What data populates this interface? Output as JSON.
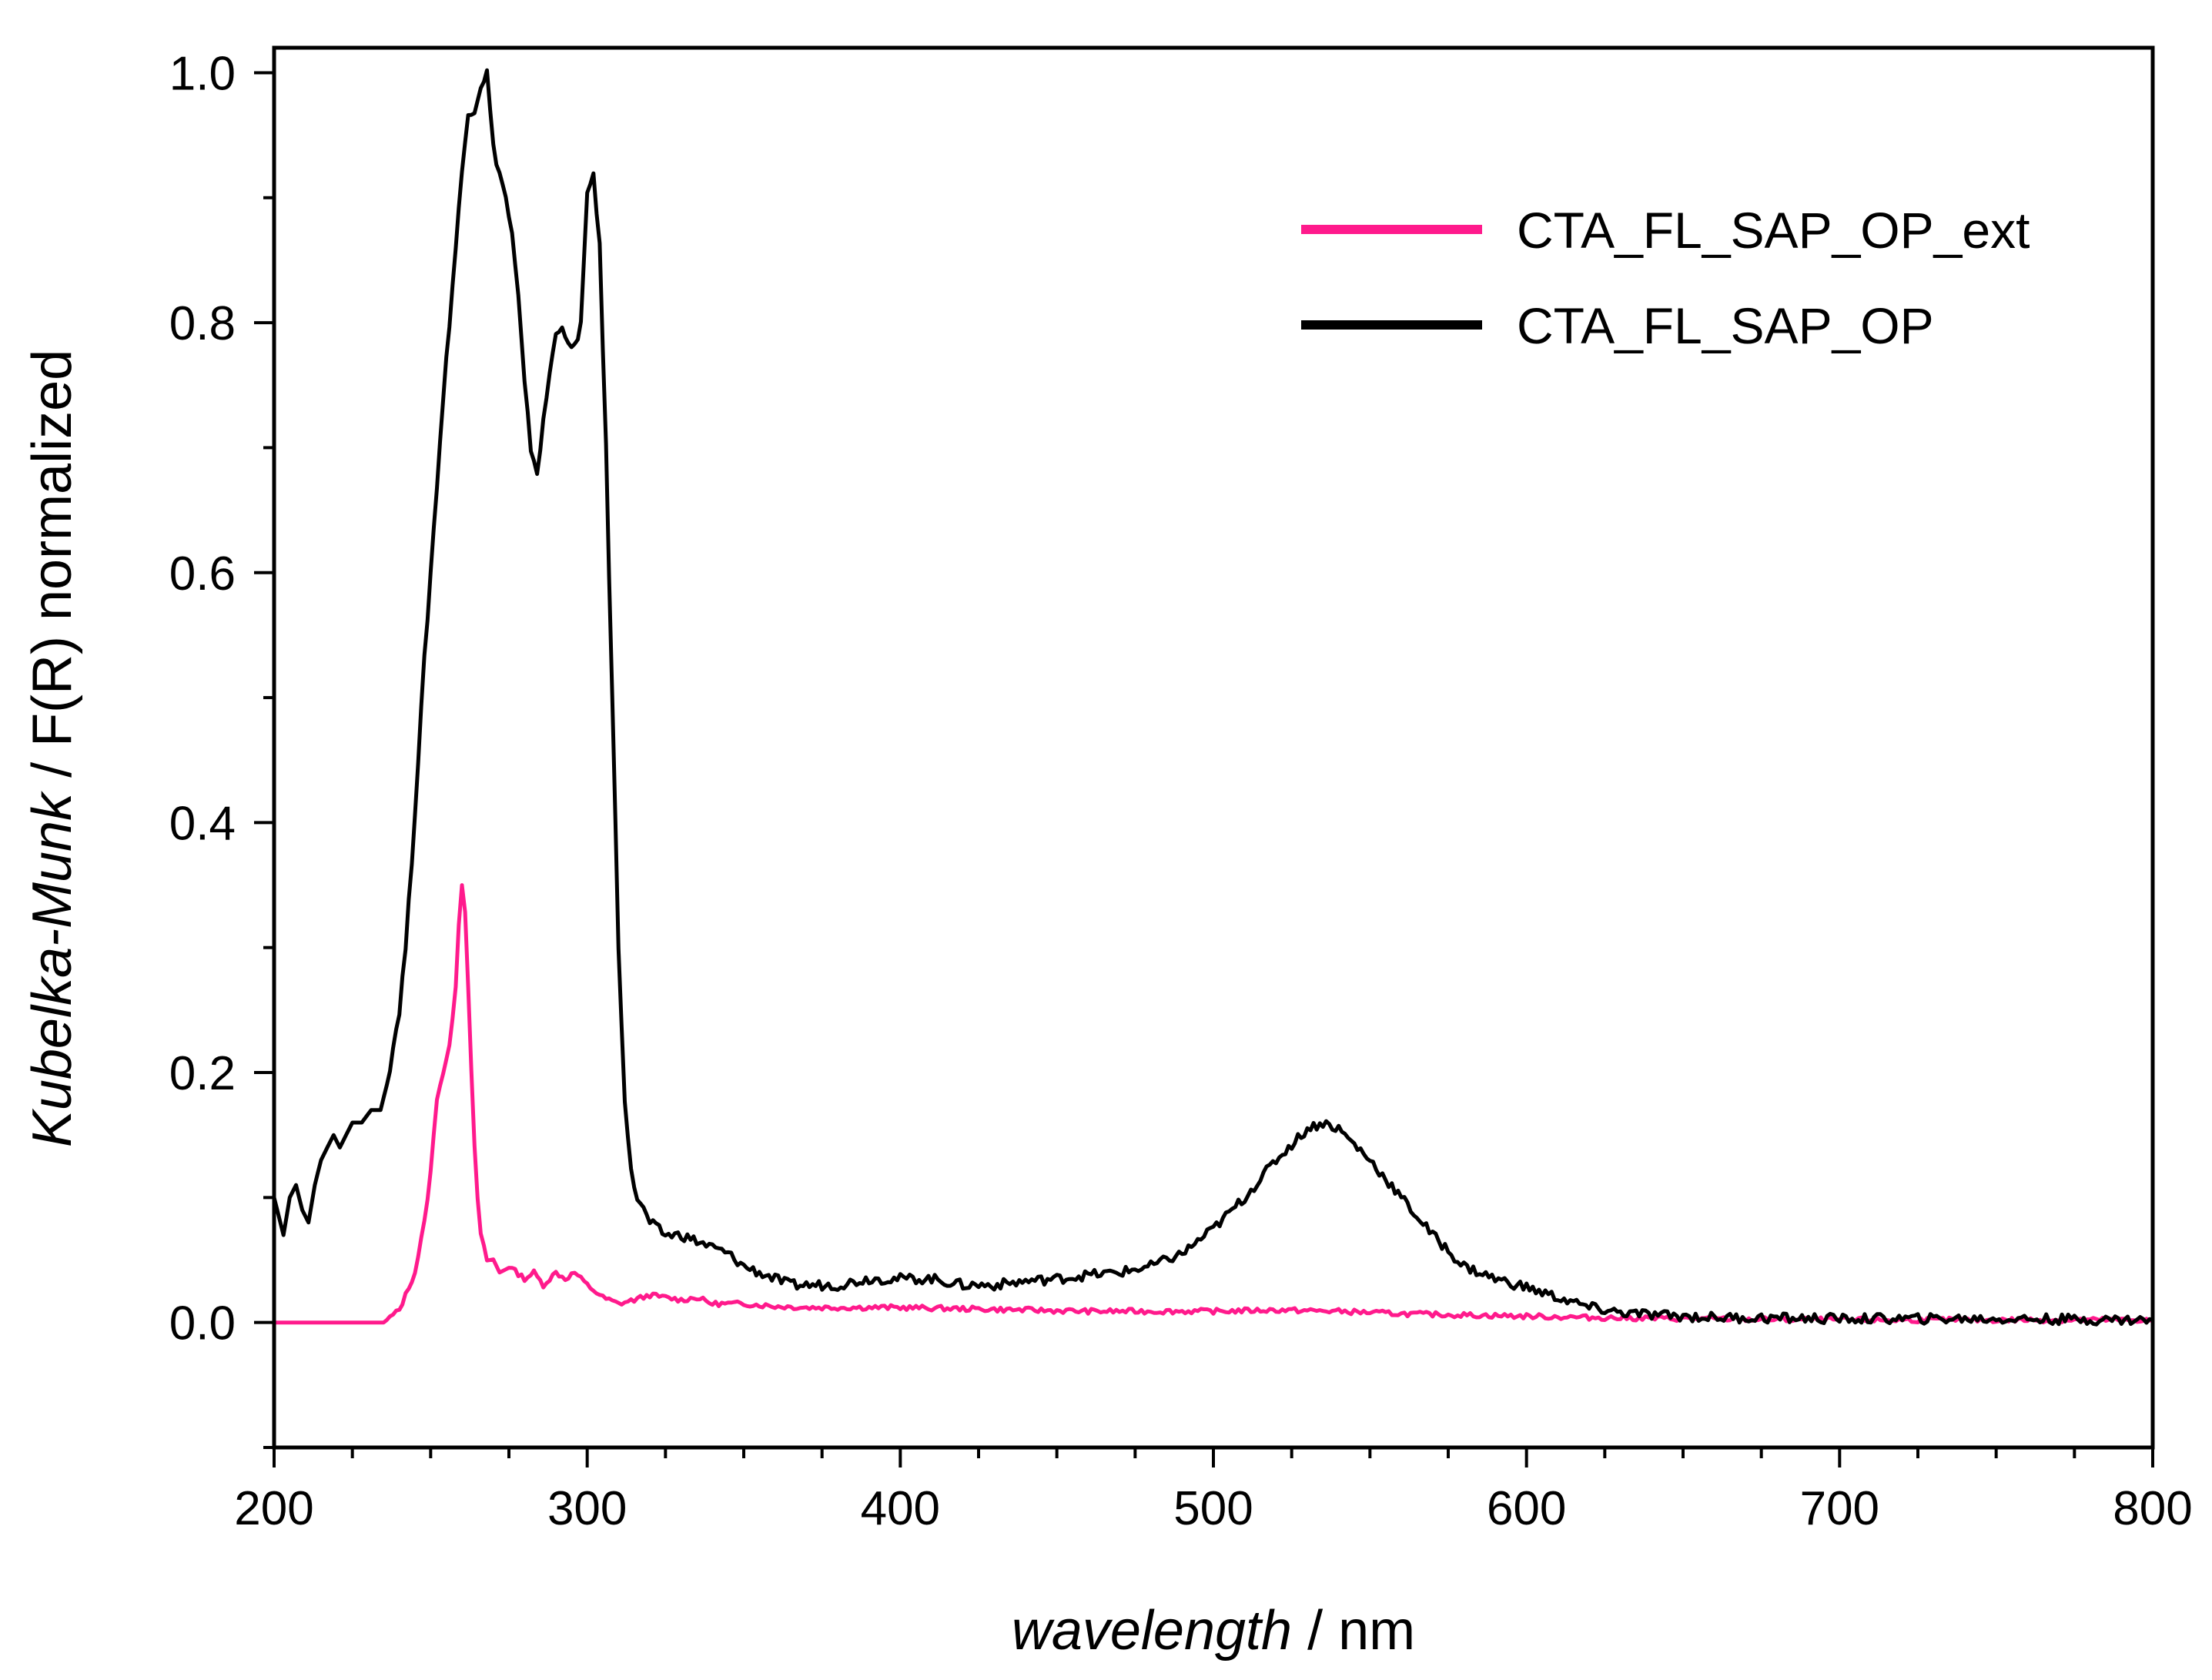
{
  "chart_data": {
    "type": "line",
    "title": "",
    "xlabel": {
      "italic": "wavelength",
      "rest": " / nm"
    },
    "ylabel": {
      "italic": "Kubelka-Munk",
      "rest": " / F(R) normalized"
    },
    "xlim": [
      200,
      800
    ],
    "ylim": [
      -0.1,
      1.02
    ],
    "x_ticks": [
      200,
      300,
      400,
      500,
      600,
      700,
      800
    ],
    "x_tick_labels": [
      "200",
      "300",
      "400",
      "500",
      "600",
      "700",
      "800"
    ],
    "y_ticks": [
      0.0,
      0.2,
      0.4,
      0.6,
      0.8,
      1.0
    ],
    "y_tick_labels": [
      "0.0",
      "0.2",
      "0.4",
      "0.6",
      "0.8",
      "1.0"
    ],
    "x_minor_step": 25,
    "y_minor_step": 0.1,
    "grid": false,
    "legend_position": "top-right",
    "series": [
      {
        "name": "CTA_FL_SAP_OP_ext",
        "color": "#ff1a8c",
        "points": [
          [
            200,
            0.0
          ],
          [
            220,
            0.0
          ],
          [
            235,
            0.0
          ],
          [
            240,
            0.01
          ],
          [
            245,
            0.04
          ],
          [
            248,
            0.08
          ],
          [
            250,
            0.12
          ],
          [
            252,
            0.18
          ],
          [
            254,
            0.2
          ],
          [
            256,
            0.22
          ],
          [
            258,
            0.27
          ],
          [
            259,
            0.32
          ],
          [
            260,
            0.35
          ],
          [
            261,
            0.33
          ],
          [
            262,
            0.27
          ],
          [
            263,
            0.2
          ],
          [
            264,
            0.14
          ],
          [
            265,
            0.1
          ],
          [
            266,
            0.07
          ],
          [
            268,
            0.05
          ],
          [
            270,
            0.05
          ],
          [
            272,
            0.04
          ],
          [
            275,
            0.045
          ],
          [
            280,
            0.035
          ],
          [
            283,
            0.04
          ],
          [
            286,
            0.03
          ],
          [
            290,
            0.04
          ],
          [
            293,
            0.035
          ],
          [
            296,
            0.04
          ],
          [
            300,
            0.03
          ],
          [
            305,
            0.02
          ],
          [
            310,
            0.015
          ],
          [
            315,
            0.018
          ],
          [
            320,
            0.022
          ],
          [
            325,
            0.02
          ],
          [
            330,
            0.018
          ],
          [
            335,
            0.02
          ],
          [
            340,
            0.015
          ],
          [
            350,
            0.015
          ],
          [
            360,
            0.013
          ],
          [
            370,
            0.012
          ],
          [
            380,
            0.012
          ],
          [
            400,
            0.012
          ],
          [
            420,
            0.011
          ],
          [
            440,
            0.01
          ],
          [
            460,
            0.009
          ],
          [
            480,
            0.009
          ],
          [
            500,
            0.009
          ],
          [
            520,
            0.01
          ],
          [
            540,
            0.009
          ],
          [
            560,
            0.007
          ],
          [
            580,
            0.006
          ],
          [
            600,
            0.005
          ],
          [
            620,
            0.004
          ],
          [
            650,
            0.003
          ],
          [
            700,
            0.002
          ],
          [
            750,
            0.002
          ],
          [
            800,
            0.002
          ]
        ]
      },
      {
        "name": "CTA_FL_SAP_OP",
        "color": "#000000",
        "points": [
          [
            200,
            0.1
          ],
          [
            203,
            0.07
          ],
          [
            205,
            0.1
          ],
          [
            207,
            0.11
          ],
          [
            209,
            0.09
          ],
          [
            211,
            0.08
          ],
          [
            213,
            0.11
          ],
          [
            215,
            0.13
          ],
          [
            217,
            0.14
          ],
          [
            219,
            0.15
          ],
          [
            221,
            0.14
          ],
          [
            223,
            0.15
          ],
          [
            225,
            0.16
          ],
          [
            228,
            0.16
          ],
          [
            231,
            0.17
          ],
          [
            234,
            0.17
          ],
          [
            236,
            0.19
          ],
          [
            238,
            0.22
          ],
          [
            240,
            0.25
          ],
          [
            242,
            0.3
          ],
          [
            244,
            0.37
          ],
          [
            246,
            0.45
          ],
          [
            248,
            0.53
          ],
          [
            250,
            0.6
          ],
          [
            252,
            0.67
          ],
          [
            254,
            0.74
          ],
          [
            256,
            0.8
          ],
          [
            258,
            0.86
          ],
          [
            260,
            0.92
          ],
          [
            262,
            0.97
          ],
          [
            264,
            0.97
          ],
          [
            266,
            0.99
          ],
          [
            268,
            1.0
          ],
          [
            270,
            0.94
          ],
          [
            272,
            0.92
          ],
          [
            274,
            0.9
          ],
          [
            276,
            0.87
          ],
          [
            278,
            0.82
          ],
          [
            280,
            0.75
          ],
          [
            282,
            0.7
          ],
          [
            284,
            0.68
          ],
          [
            286,
            0.72
          ],
          [
            288,
            0.76
          ],
          [
            290,
            0.79
          ],
          [
            292,
            0.8
          ],
          [
            294,
            0.78
          ],
          [
            296,
            0.78
          ],
          [
            298,
            0.8
          ],
          [
            300,
            0.9
          ],
          [
            302,
            0.92
          ],
          [
            304,
            0.86
          ],
          [
            306,
            0.7
          ],
          [
            308,
            0.5
          ],
          [
            310,
            0.3
          ],
          [
            312,
            0.18
          ],
          [
            314,
            0.12
          ],
          [
            316,
            0.1
          ],
          [
            318,
            0.09
          ],
          [
            320,
            0.08
          ],
          [
            325,
            0.07
          ],
          [
            330,
            0.07
          ],
          [
            335,
            0.065
          ],
          [
            340,
            0.06
          ],
          [
            345,
            0.055
          ],
          [
            350,
            0.045
          ],
          [
            355,
            0.04
          ],
          [
            360,
            0.035
          ],
          [
            365,
            0.03
          ],
          [
            370,
            0.03
          ],
          [
            380,
            0.03
          ],
          [
            390,
            0.035
          ],
          [
            400,
            0.035
          ],
          [
            410,
            0.035
          ],
          [
            420,
            0.03
          ],
          [
            430,
            0.03
          ],
          [
            440,
            0.033
          ],
          [
            450,
            0.035
          ],
          [
            460,
            0.038
          ],
          [
            470,
            0.04
          ],
          [
            480,
            0.045
          ],
          [
            490,
            0.055
          ],
          [
            500,
            0.075
          ],
          [
            510,
            0.1
          ],
          [
            520,
            0.13
          ],
          [
            530,
            0.155
          ],
          [
            535,
            0.16
          ],
          [
            540,
            0.155
          ],
          [
            550,
            0.13
          ],
          [
            560,
            0.1
          ],
          [
            570,
            0.07
          ],
          [
            580,
            0.045
          ],
          [
            590,
            0.035
          ],
          [
            600,
            0.028
          ],
          [
            610,
            0.02
          ],
          [
            620,
            0.012
          ],
          [
            630,
            0.008
          ],
          [
            640,
            0.006
          ],
          [
            660,
            0.004
          ],
          [
            700,
            0.003
          ],
          [
            750,
            0.003
          ],
          [
            800,
            0.002
          ]
        ]
      }
    ]
  }
}
